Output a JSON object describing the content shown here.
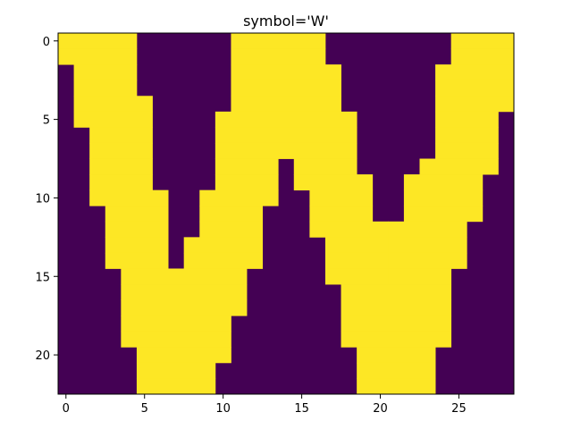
{
  "chart_data": {
    "type": "heatmap",
    "title": "symbol='W'",
    "xlabel": "",
    "ylabel": "",
    "xlim": [
      -0.5,
      28.5
    ],
    "ylim": [
      22.5,
      -0.5
    ],
    "xticks": [
      0,
      5,
      10,
      15,
      20,
      25
    ],
    "yticks": [
      0,
      5,
      10,
      15,
      20
    ],
    "grid": false,
    "colors": {
      "low": "#440154",
      "high": "#fde725",
      "frame": "#000000"
    },
    "rows": 23,
    "cols": 29,
    "row_intervals": [
      [
        [
          0,
          4
        ],
        [
          11,
          16
        ],
        [
          25,
          28
        ]
      ],
      [
        [
          0,
          4
        ],
        [
          11,
          16
        ],
        [
          25,
          28
        ]
      ],
      [
        [
          1,
          4
        ],
        [
          11,
          17
        ],
        [
          24,
          28
        ]
      ],
      [
        [
          1,
          4
        ],
        [
          11,
          17
        ],
        [
          24,
          28
        ]
      ],
      [
        [
          1,
          5
        ],
        [
          11,
          17
        ],
        [
          24,
          28
        ]
      ],
      [
        [
          1,
          5
        ],
        [
          10,
          18
        ],
        [
          24,
          27
        ]
      ],
      [
        [
          2,
          5
        ],
        [
          10,
          18
        ],
        [
          24,
          27
        ]
      ],
      [
        [
          2,
          5
        ],
        [
          10,
          18
        ],
        [
          24,
          27
        ]
      ],
      [
        [
          2,
          5
        ],
        [
          10,
          13
        ],
        [
          15,
          18
        ],
        [
          23,
          27
        ]
      ],
      [
        [
          2,
          5
        ],
        [
          10,
          13
        ],
        [
          15,
          19
        ],
        [
          22,
          26
        ]
      ],
      [
        [
          2,
          6
        ],
        [
          9,
          13
        ],
        [
          16,
          19
        ],
        [
          22,
          26
        ]
      ],
      [
        [
          3,
          6
        ],
        [
          9,
          12
        ],
        [
          16,
          19
        ],
        [
          22,
          26
        ]
      ],
      [
        [
          3,
          6
        ],
        [
          9,
          12
        ],
        [
          16,
          20
        ],
        [
          21,
          25
        ]
      ],
      [
        [
          3,
          6
        ],
        [
          8,
          12
        ],
        [
          17,
          20
        ],
        [
          21,
          25
        ]
      ],
      [
        [
          3,
          6
        ],
        [
          8,
          12
        ],
        [
          17,
          20
        ],
        [
          21,
          25
        ]
      ],
      [
        [
          4,
          11
        ],
        [
          17,
          20
        ],
        [
          21,
          24
        ]
      ],
      [
        [
          4,
          11
        ],
        [
          18,
          24
        ]
      ],
      [
        [
          4,
          11
        ],
        [
          18,
          24
        ]
      ],
      [
        [
          4,
          10
        ],
        [
          18,
          24
        ]
      ],
      [
        [
          4,
          10
        ],
        [
          18,
          24
        ]
      ],
      [
        [
          5,
          10
        ],
        [
          19,
          23
        ]
      ],
      [
        [
          5,
          9
        ],
        [
          19,
          23
        ]
      ],
      [
        [
          5,
          9
        ],
        [
          19,
          23
        ]
      ]
    ]
  }
}
